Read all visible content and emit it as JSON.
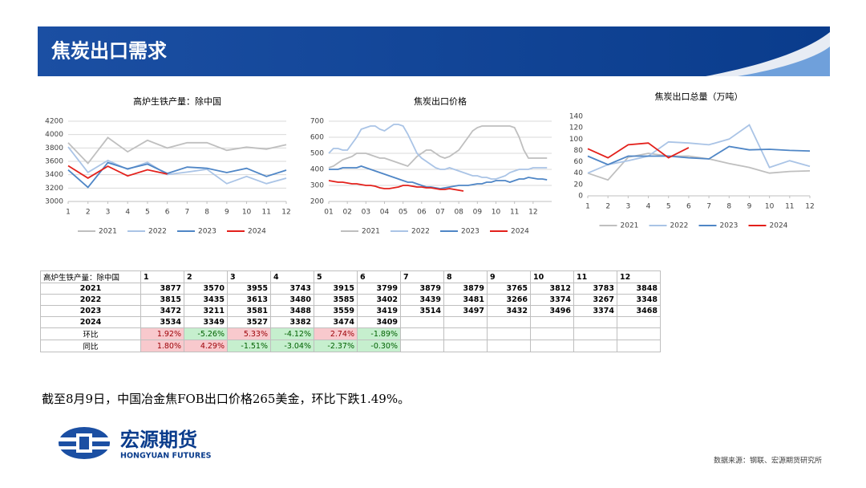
{
  "header": {
    "title": "焦炭出口需求"
  },
  "chart_data": [
    {
      "type": "line",
      "title": "高炉生铁产量：除中国",
      "x": [
        1,
        2,
        3,
        4,
        5,
        6,
        7,
        8,
        9,
        10,
        11,
        12
      ],
      "xlim": [
        1,
        12
      ],
      "xticks": [
        1,
        2,
        3,
        4,
        5,
        6,
        7,
        8,
        9,
        10,
        11,
        12
      ],
      "ylim": [
        3000,
        4200
      ],
      "yticks": [
        3000,
        3200,
        3400,
        3600,
        3800,
        4000,
        4200
      ],
      "grid": true,
      "legend": "bottom",
      "series": [
        {
          "name": "2021",
          "color": "#bfbfbf",
          "values": [
            3877,
            3570,
            3955,
            3743,
            3915,
            3799,
            3879,
            3879,
            3765,
            3812,
            3783,
            3848
          ]
        },
        {
          "name": "2022",
          "color": "#aac4e6",
          "values": [
            3815,
            3435,
            3613,
            3480,
            3585,
            3402,
            3439,
            3481,
            3266,
            3374,
            3267,
            3348
          ]
        },
        {
          "name": "2023",
          "color": "#4f86c6",
          "values": [
            3472,
            3211,
            3581,
            3488,
            3559,
            3419,
            3514,
            3497,
            3432,
            3496,
            3374,
            3468
          ]
        },
        {
          "name": "2024",
          "color": "#e3201b",
          "values": [
            3534,
            3349,
            3527,
            3382,
            3474,
            3409,
            null,
            null,
            null,
            null,
            null,
            null
          ]
        }
      ]
    },
    {
      "type": "line",
      "title": "焦炭出口价格",
      "x": [
        1,
        1.25,
        1.5,
        1.75,
        2,
        2.25,
        2.5,
        2.75,
        3,
        3.25,
        3.5,
        3.75,
        4,
        4.25,
        4.5,
        4.75,
        5,
        5.25,
        5.5,
        5.75,
        6,
        6.25,
        6.5,
        6.75,
        7,
        7.25,
        7.5,
        7.75,
        8,
        8.25,
        8.5,
        8.75,
        9,
        9.25,
        9.5,
        9.75,
        10,
        10.25,
        10.5,
        10.75,
        11,
        11.25,
        11.5,
        11.75,
        12,
        12.25,
        12.5,
        12.75
      ],
      "xlim": [
        1,
        13
      ],
      "xticks": [
        {
          "value": 1,
          "label": "01"
        },
        {
          "value": 2,
          "label": "02"
        },
        {
          "value": 3,
          "label": "03"
        },
        {
          "value": 4,
          "label": "04"
        },
        {
          "value": 5,
          "label": "05"
        },
        {
          "value": 6,
          "label": "06"
        },
        {
          "value": 7,
          "label": "07"
        },
        {
          "value": 8,
          "label": "08"
        },
        {
          "value": 9,
          "label": "09"
        },
        10,
        11,
        12
      ],
      "ylim": [
        200,
        700
      ],
      "yticks": [
        200,
        300,
        400,
        500,
        600,
        700
      ],
      "grid": true,
      "legend": "bottom",
      "series": [
        {
          "name": "2021",
          "color": "#bfbfbf",
          "values": [
            410,
            420,
            440,
            460,
            470,
            480,
            500,
            500,
            500,
            490,
            480,
            470,
            470,
            460,
            450,
            440,
            430,
            420,
            450,
            480,
            500,
            520,
            520,
            500,
            480,
            470,
            480,
            500,
            520,
            560,
            600,
            640,
            660,
            670,
            670,
            670,
            670,
            670,
            670,
            670,
            660,
            600,
            520,
            470,
            470,
            470,
            470,
            470
          ]
        },
        {
          "name": "2022",
          "color": "#aac4e6",
          "values": [
            500,
            530,
            530,
            520,
            520,
            560,
            600,
            650,
            660,
            670,
            670,
            650,
            640,
            660,
            680,
            680,
            670,
            620,
            560,
            500,
            470,
            450,
            430,
            410,
            400,
            400,
            410,
            400,
            390,
            380,
            370,
            360,
            360,
            350,
            350,
            340,
            340,
            350,
            360,
            380,
            390,
            400,
            400,
            400,
            410,
            410,
            410,
            410
          ]
        },
        {
          "name": "2023",
          "color": "#4f86c6",
          "values": [
            400,
            400,
            400,
            410,
            410,
            410,
            410,
            420,
            410,
            400,
            390,
            380,
            370,
            360,
            350,
            340,
            330,
            320,
            320,
            310,
            300,
            290,
            290,
            285,
            280,
            285,
            290,
            295,
            300,
            300,
            300,
            305,
            310,
            310,
            320,
            320,
            330,
            330,
            330,
            320,
            330,
            340,
            340,
            350,
            345,
            340,
            340,
            335
          ]
        },
        {
          "name": "2024",
          "color": "#e3201b",
          "values": [
            330,
            325,
            320,
            320,
            315,
            310,
            310,
            305,
            300,
            300,
            295,
            285,
            280,
            280,
            285,
            290,
            300,
            300,
            295,
            290,
            290,
            285,
            285,
            280,
            275,
            275,
            280,
            275,
            270,
            265,
            null,
            null,
            null,
            null,
            null,
            null,
            null,
            null,
            null,
            null,
            null,
            null,
            null,
            null,
            null,
            null,
            null,
            null
          ]
        }
      ]
    },
    {
      "type": "line",
      "title": "焦炭出口总量（万吨）",
      "x": [
        1,
        2,
        3,
        4,
        5,
        6,
        7,
        8,
        9,
        10,
        11,
        12
      ],
      "xlim": [
        1,
        12
      ],
      "xticks": [
        1,
        2,
        3,
        4,
        5,
        6,
        7,
        8,
        9,
        10,
        11,
        12
      ],
      "ylim": [
        0,
        140
      ],
      "yticks": [
        0,
        20,
        40,
        60,
        80,
        100,
        120,
        140
      ],
      "grid": false,
      "legend": "bottom",
      "series": [
        {
          "name": "2021",
          "color": "#bfbfbf",
          "values": [
            40,
            28,
            68,
            75,
            70,
            70,
            65,
            57,
            50,
            40,
            43,
            44
          ]
        },
        {
          "name": "2022",
          "color": "#aac4e6",
          "values": [
            40,
            55,
            62,
            70,
            95,
            93,
            90,
            100,
            125,
            50,
            62,
            52
          ]
        },
        {
          "name": "2023",
          "color": "#4f86c6",
          "values": [
            70,
            55,
            70,
            70,
            70,
            67,
            65,
            87,
            81,
            82,
            80,
            79
          ]
        },
        {
          "name": "2024",
          "color": "#e3201b",
          "values": [
            83,
            67,
            90,
            93,
            67,
            85,
            null,
            null,
            null,
            null,
            null,
            null
          ]
        }
      ]
    }
  ],
  "table": {
    "header": [
      "高炉生铁产量：除中国",
      "1",
      "2",
      "3",
      "4",
      "5",
      "6",
      "7",
      "8",
      "9",
      "10",
      "11",
      "12"
    ],
    "rows": [
      [
        "2021",
        3877,
        3570,
        3955,
        3743,
        3915,
        3799,
        3879,
        3879,
        3765,
        3812,
        3783,
        3848
      ],
      [
        "2022",
        3815,
        3435,
        3613,
        3480,
        3585,
        3402,
        3439,
        3481,
        3266,
        3374,
        3267,
        3348
      ],
      [
        "2023",
        3472,
        3211,
        3581,
        3488,
        3559,
        3419,
        3514,
        3497,
        3432,
        3496,
        3374,
        3468
      ],
      [
        "2024",
        3534,
        3349,
        3527,
        3382,
        3474,
        3409
      ],
      [
        "环比",
        "1.92%",
        "-5.26%",
        "5.33%",
        "-4.12%",
        "2.74%",
        "-1.89%"
      ],
      [
        "同比",
        "1.80%",
        "4.29%",
        "-1.51%",
        "-3.04%",
        "-2.37%",
        "-0.30%"
      ]
    ]
  },
  "note": "截至8月9日，中国冶金焦FOB出口价格265美金，环比下跌1.49%。",
  "logo": {
    "name": "宏源期货",
    "subtitle": "HONGYUAN FUTURES"
  },
  "source": "数据来源：钢联、宏源期货研究所"
}
